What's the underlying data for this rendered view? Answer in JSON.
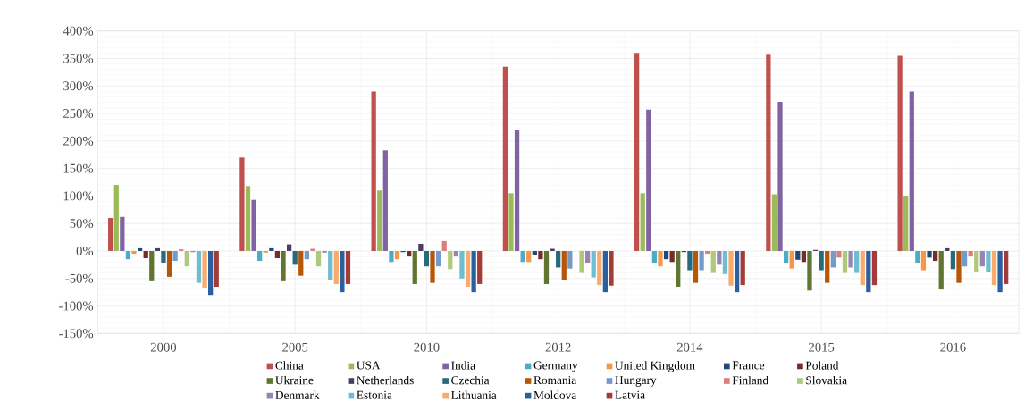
{
  "chart_data": {
    "type": "bar",
    "categories": [
      "2000",
      "2005",
      "2010",
      "2012",
      "2014",
      "2015",
      "2016"
    ],
    "series": [
      {
        "name": "China",
        "color": "#c0504d",
        "values": [
          60,
          170,
          290,
          335,
          360,
          357,
          355
        ]
      },
      {
        "name": "USA",
        "color": "#9bbb59",
        "values": [
          120,
          118,
          110,
          105,
          105,
          103,
          100
        ]
      },
      {
        "name": "India",
        "color": "#8064a2",
        "values": [
          62,
          93,
          183,
          220,
          257,
          271,
          290
        ]
      },
      {
        "name": "Germany",
        "color": "#4bacc6",
        "values": [
          -15,
          -18,
          -20,
          -20,
          -22,
          -22,
          -22
        ]
      },
      {
        "name": "United Kingdom",
        "color": "#f79646",
        "values": [
          -5,
          -3,
          -15,
          -20,
          -28,
          -32,
          -35
        ]
      },
      {
        "name": "France",
        "color": "#1f497d",
        "values": [
          5,
          5,
          -2,
          -8,
          -15,
          -16,
          -12
        ]
      },
      {
        "name": "Poland",
        "color": "#772c2a",
        "values": [
          -13,
          -13,
          -10,
          -15,
          -20,
          -20,
          -18
        ]
      },
      {
        "name": "Ukraine",
        "color": "#5f7530",
        "values": [
          -55,
          -55,
          -60,
          -60,
          -65,
          -72,
          -70
        ]
      },
      {
        "name": "Netherlands",
        "color": "#4d3b62",
        "values": [
          5,
          12,
          13,
          4,
          -2,
          2,
          5
        ]
      },
      {
        "name": "Czechia",
        "color": "#276a7c",
        "values": [
          -22,
          -25,
          -28,
          -30,
          -35,
          -35,
          -33
        ]
      },
      {
        "name": "Romania",
        "color": "#b65708",
        "values": [
          -47,
          -45,
          -58,
          -52,
          -58,
          -58,
          -58
        ]
      },
      {
        "name": "Hungary",
        "color": "#729aca",
        "values": [
          -18,
          -15,
          -28,
          -32,
          -35,
          -30,
          -28
        ]
      },
      {
        "name": "Finland",
        "color": "#d9807e",
        "values": [
          3,
          4,
          18,
          0,
          -5,
          -12,
          -10
        ]
      },
      {
        "name": "Slovakia",
        "color": "#afc97a",
        "values": [
          -28,
          -28,
          -33,
          -40,
          -40,
          -40,
          -38
        ]
      },
      {
        "name": "Denmark",
        "color": "#9983b5",
        "values": [
          -2,
          -3,
          -10,
          -22,
          -25,
          -30,
          -28
        ]
      },
      {
        "name": "Estonia",
        "color": "#6fbdd1",
        "values": [
          -58,
          -52,
          -50,
          -48,
          -42,
          -40,
          -38
        ]
      },
      {
        "name": "Lithuania",
        "color": "#f9ab6b",
        "values": [
          -67,
          -60,
          -65,
          -62,
          -63,
          -62,
          -62
        ]
      },
      {
        "name": "Moldova",
        "color": "#2c5f9e",
        "values": [
          -80,
          -75,
          -75,
          -75,
          -75,
          -75,
          -75
        ]
      },
      {
        "name": "Latvia",
        "color": "#a33b38",
        "values": [
          -65,
          -60,
          -60,
          -63,
          -62,
          -62,
          -60
        ]
      }
    ],
    "ylim": [
      -150,
      400
    ],
    "yticks": [
      {
        "value": -150,
        "label": "-150%"
      },
      {
        "value": -100,
        "label": "-100%"
      },
      {
        "value": -50,
        "label": "-50%"
      },
      {
        "value": 0,
        "label": "0%"
      },
      {
        "value": 50,
        "label": "50%"
      },
      {
        "value": 100,
        "label": "100%"
      },
      {
        "value": 150,
        "label": "150%"
      },
      {
        "value": 200,
        "label": "200%"
      },
      {
        "value": 250,
        "label": "250%"
      },
      {
        "value": 300,
        "label": "300%"
      },
      {
        "value": 350,
        "label": "350%"
      },
      {
        "value": 400,
        "label": "400%"
      }
    ],
    "grid": true,
    "legend": "bottom"
  }
}
